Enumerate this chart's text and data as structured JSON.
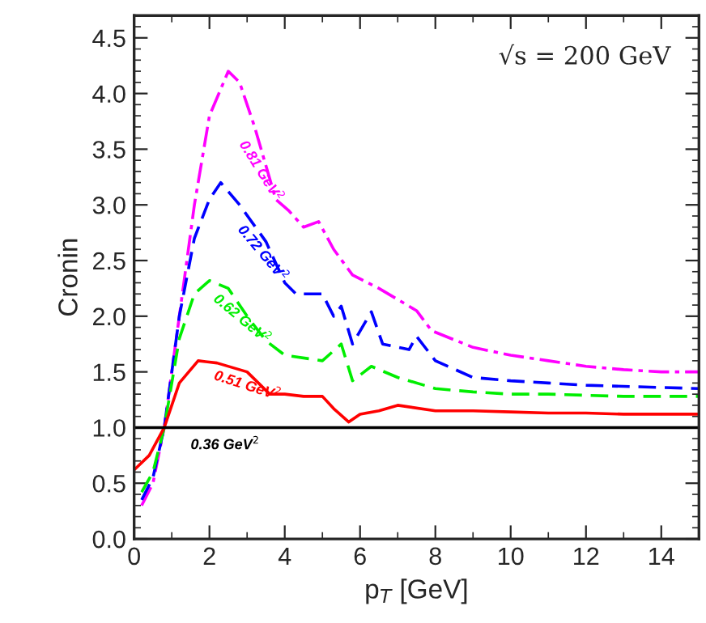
{
  "chart_data": {
    "type": "line",
    "xlabel": "p$_{T}$ [GeV]",
    "ylabel": "Cronin",
    "xlim": [
      0,
      15
    ],
    "xticks": [
      0,
      2,
      4,
      6,
      8,
      10,
      12,
      14
    ],
    "ylim": [
      0,
      4.7
    ],
    "yticks": [
      {
        "value": 0,
        "label": "0.0"
      },
      0.5,
      {
        "value": 1,
        "label": "1.0"
      },
      1.5,
      {
        "value": 2,
        "label": "2.0"
      },
      2.5,
      {
        "value": 3,
        "label": "3.0"
      },
      3.5,
      {
        "value": 4,
        "label": "4.0"
      },
      4.5
    ],
    "grid": false,
    "legend": false,
    "series": [
      {
        "name": "0.81 GeV$^{2}$",
        "color": "#ff00ff",
        "line_style": "dashdot",
        "x": [
          0.2,
          0.5,
          0.8,
          1.2,
          1.6,
          2.0,
          2.5,
          2.8,
          3.2,
          3.76,
          4.1,
          4.5,
          4.9,
          5.3,
          5.8,
          6.5,
          7.0,
          7.5,
          7.9,
          9,
          10,
          11,
          12,
          13,
          14,
          15
        ],
        "values": [
          0.3,
          0.5,
          1.0,
          2.0,
          3.0,
          3.8,
          4.2,
          4.1,
          3.7,
          3.05,
          2.95,
          2.8,
          2.85,
          2.6,
          2.37,
          2.25,
          2.15,
          2.05,
          1.87,
          1.72,
          1.65,
          1.6,
          1.55,
          1.52,
          1.5,
          1.5
        ]
      },
      {
        "name": "0.72 GeV$^{2}$",
        "color": "#0000ff",
        "line_style": "dashed",
        "x": [
          0.2,
          0.5,
          0.8,
          1.2,
          1.6,
          2.0,
          2.3,
          2.8,
          3.5,
          4.0,
          4.3,
          5.0,
          5.3,
          5.5,
          5.8,
          6.3,
          6.6,
          7.3,
          7.5,
          8,
          9,
          10,
          11,
          12,
          13,
          14,
          15
        ],
        "values": [
          0.35,
          0.55,
          1.0,
          2.0,
          2.7,
          3.05,
          3.2,
          3.0,
          2.67,
          2.3,
          2.2,
          2.2,
          2.0,
          2.09,
          1.75,
          2.04,
          1.75,
          1.7,
          1.82,
          1.6,
          1.45,
          1.42,
          1.4,
          1.38,
          1.37,
          1.36,
          1.35
        ]
      },
      {
        "name": "0.62 GeV$^{2}$",
        "color": "#00ee00",
        "line_style": "dashed",
        "x": [
          0.2,
          0.5,
          0.8,
          1.2,
          1.6,
          2.0,
          2.5,
          3.0,
          3.5,
          4.0,
          5.0,
          5.5,
          5.8,
          6.3,
          7.0,
          8,
          9,
          10,
          11,
          12,
          13,
          14,
          15
        ],
        "values": [
          0.42,
          0.6,
          1.0,
          1.8,
          2.2,
          2.32,
          2.25,
          2.0,
          1.78,
          1.65,
          1.6,
          1.75,
          1.42,
          1.55,
          1.45,
          1.35,
          1.32,
          1.3,
          1.3,
          1.29,
          1.28,
          1.28,
          1.28
        ]
      },
      {
        "name": "0.51 GeV$^{2}$",
        "color": "#ff0000",
        "line_style": "solid",
        "x": [
          0,
          0.4,
          0.8,
          1.2,
          1.7,
          2.2,
          3.0,
          3.6,
          4.0,
          4.5,
          5.0,
          5.3,
          5.7,
          6.0,
          6.5,
          7.0,
          8,
          9,
          10,
          11,
          12,
          13,
          14,
          15
        ],
        "values": [
          0.62,
          0.75,
          1.0,
          1.4,
          1.6,
          1.58,
          1.5,
          1.3,
          1.3,
          1.28,
          1.28,
          1.17,
          1.05,
          1.12,
          1.15,
          1.2,
          1.15,
          1.15,
          1.14,
          1.13,
          1.13,
          1.12,
          1.12,
          1.12
        ]
      }
    ],
    "ref_lines": [
      {
        "axis": "y",
        "value": 1.0,
        "color": "#000000",
        "line_style": "solid",
        "label": "0.36 GeV$^{2}$"
      }
    ],
    "annotations": [
      "√s = 200 GeV"
    ]
  }
}
